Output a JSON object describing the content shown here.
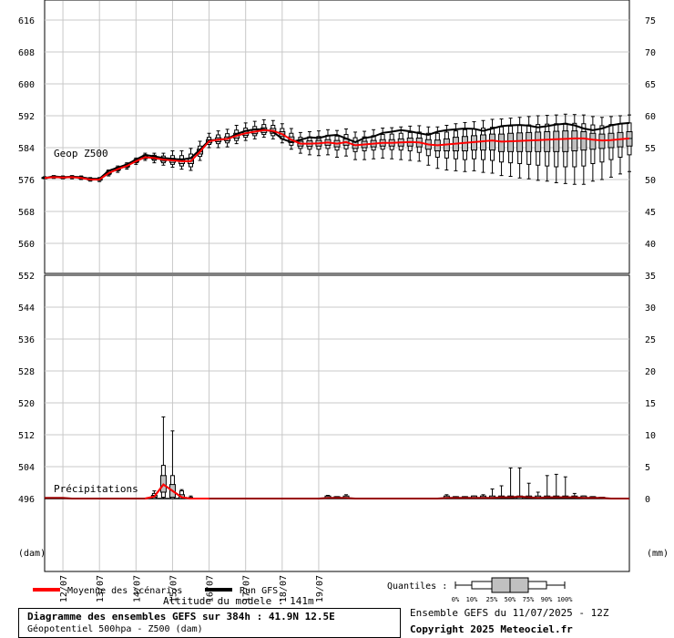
{
  "chart_data": {
    "type": "box-ensemble",
    "title": "Diagramme des ensembles GEFS sur 384h : 41.9N 12.5E",
    "subtitle": "Géopotentiel 500hpa - Z500 (dam)",
    "altitude_label": "Altitude du modele : 141m",
    "run_label": "Ensemble GEFS du 11/07/2025 - 12Z",
    "copyright": "Copyright 2025 Meteociel.fr",
    "left_axis_unit": "(dam)",
    "right_axis_unit": "(mm)",
    "upper_panel_label": "Geop Z500",
    "lower_panel_label": "Précipitations",
    "left_ticks": [
      616,
      608,
      600,
      592,
      584,
      576,
      568,
      560,
      552,
      544,
      536,
      528,
      520,
      512,
      504,
      496
    ],
    "right_ticks_upper": [
      75,
      70,
      65,
      60,
      55,
      50,
      45,
      40,
      35
    ],
    "right_ticks_lower": [
      30,
      25,
      20,
      15,
      10,
      5,
      0
    ],
    "date_ticks": [
      "12/07",
      "13/07",
      "14/07",
      "15/07",
      "16/07",
      "17/07",
      "18/07",
      "19/07"
    ],
    "legend": {
      "mean_label": "Moyenne des scénarios",
      "run_label": "Run GFS",
      "mean_color": "#ff0000",
      "run_color": "#000000",
      "quantiles_label": "Quantiles :",
      "quantile_labels": [
        "0%",
        "10%",
        "25%",
        "50%",
        "75%",
        "90%",
        "100%"
      ]
    },
    "z500": {
      "x_hours": [
        0,
        6,
        12,
        18,
        24,
        30,
        36,
        42,
        48,
        54,
        60,
        66,
        72,
        78,
        84,
        90,
        96,
        102,
        108,
        114,
        120,
        126,
        132,
        138,
        144,
        150,
        156,
        162,
        168,
        174,
        180,
        186,
        192,
        198,
        204,
        210,
        216,
        222,
        228,
        234,
        240,
        246,
        252,
        258,
        264,
        270,
        276,
        282,
        288,
        294,
        300,
        306,
        312,
        318,
        324,
        330,
        336,
        342,
        348,
        354,
        360,
        366,
        372,
        378,
        384
      ],
      "mean": [
        576.4,
        576.6,
        576.5,
        576.6,
        576.4,
        576.0,
        576.0,
        577.6,
        578.6,
        579.4,
        580.6,
        581.6,
        581.4,
        581.0,
        580.8,
        580.6,
        580.6,
        583.0,
        585.6,
        586.0,
        586.2,
        587.0,
        587.6,
        588.0,
        588.4,
        588.2,
        587.4,
        586.0,
        585.0,
        585.0,
        585.1,
        585.3,
        585.0,
        585.4,
        584.6,
        584.8,
        585.0,
        585.2,
        585.2,
        585.3,
        585.4,
        585.3,
        584.8,
        584.6,
        584.8,
        585.0,
        585.2,
        585.4,
        585.6,
        585.8,
        585.5,
        585.6,
        585.7,
        585.8,
        585.9,
        586.0,
        586.1,
        586.2,
        586.3,
        586.3,
        586.0,
        585.8,
        585.9,
        586.1,
        586.3
      ],
      "run": [
        576.4,
        576.8,
        576.6,
        576.7,
        576.6,
        576.2,
        576.2,
        578.2,
        579.0,
        579.8,
        581.0,
        582.2,
        581.8,
        581.4,
        581.2,
        581.0,
        581.4,
        583.5,
        585.8,
        586.0,
        586.2,
        587.4,
        588.2,
        588.6,
        588.6,
        588.0,
        586.2,
        585.4,
        586.0,
        586.6,
        586.4,
        587.0,
        587.2,
        586.3,
        585.4,
        586.4,
        586.8,
        587.7,
        588.0,
        588.4,
        588.1,
        587.6,
        587.2,
        588.0,
        588.4,
        588.6,
        588.8,
        588.7,
        588.2,
        588.8,
        589.4,
        589.6,
        589.7,
        589.5,
        589.1,
        589.4,
        589.8,
        590.0,
        589.6,
        588.8,
        588.4,
        588.8,
        589.6,
        590.0,
        590.2
      ],
      "q0": [
        576.2,
        576.3,
        576.2,
        576.2,
        576.0,
        575.6,
        575.5,
        576.9,
        577.8,
        578.6,
        579.8,
        580.8,
        580.2,
        579.6,
        579.1,
        578.6,
        578.3,
        580.8,
        584.0,
        584.0,
        584.2,
        585.0,
        585.8,
        586.2,
        586.6,
        586.2,
        585.2,
        583.6,
        582.6,
        582.2,
        582.0,
        582.2,
        581.6,
        581.9,
        581.0,
        581.0,
        581.2,
        581.4,
        581.2,
        581.0,
        580.8,
        580.6,
        579.6,
        578.8,
        578.4,
        578.2,
        578.0,
        578.2,
        577.8,
        577.6,
        577.0,
        576.8,
        576.4,
        576.2,
        575.8,
        575.6,
        575.2,
        575.0,
        574.8,
        574.8,
        575.6,
        576.0,
        576.6,
        577.4,
        578.0
      ],
      "q10": [
        576.3,
        576.4,
        576.3,
        576.4,
        576.2,
        575.8,
        575.8,
        577.2,
        578.2,
        579.0,
        580.2,
        581.2,
        580.8,
        580.2,
        579.8,
        579.4,
        579.2,
        581.8,
        584.8,
        585.0,
        585.2,
        585.8,
        586.6,
        587.0,
        587.3,
        587.0,
        586.2,
        584.6,
        583.8,
        583.6,
        583.6,
        583.8,
        583.4,
        583.7,
        583.0,
        583.2,
        583.4,
        583.6,
        583.5,
        583.4,
        583.2,
        582.8,
        582.0,
        581.6,
        581.4,
        581.2,
        581.0,
        581.2,
        581.0,
        580.8,
        580.4,
        580.2,
        580.0,
        579.8,
        579.6,
        579.4,
        579.2,
        579.2,
        579.2,
        579.4,
        580.0,
        580.4,
        581.0,
        581.6,
        582.2
      ],
      "q25": [
        576.3,
        576.5,
        576.4,
        576.5,
        576.3,
        575.9,
        575.9,
        577.4,
        578.4,
        579.2,
        580.4,
        581.4,
        581.1,
        580.6,
        580.3,
        580.0,
        580.0,
        582.4,
        585.2,
        585.5,
        585.7,
        586.4,
        587.1,
        587.5,
        587.8,
        587.6,
        586.8,
        585.3,
        584.4,
        584.3,
        584.4,
        584.6,
        584.2,
        584.6,
        583.8,
        584.0,
        584.2,
        584.4,
        584.4,
        584.4,
        584.4,
        584.2,
        583.6,
        583.2,
        583.2,
        583.2,
        583.2,
        583.4,
        583.4,
        583.4,
        583.0,
        583.0,
        583.0,
        583.0,
        583.0,
        583.0,
        583.0,
        583.0,
        583.2,
        583.4,
        583.6,
        583.8,
        584.0,
        584.2,
        584.4
      ],
      "q50": [
        576.4,
        576.6,
        576.5,
        576.6,
        576.4,
        576.0,
        576.0,
        577.6,
        578.6,
        579.4,
        580.6,
        581.6,
        581.4,
        581.0,
        580.8,
        580.6,
        580.6,
        583.0,
        585.6,
        586.0,
        586.2,
        587.0,
        587.6,
        588.0,
        588.4,
        588.2,
        587.4,
        586.0,
        585.0,
        585.0,
        585.1,
        585.3,
        585.0,
        585.4,
        584.6,
        584.8,
        585.0,
        585.2,
        585.2,
        585.3,
        585.4,
        585.3,
        584.8,
        584.6,
        584.8,
        585.0,
        585.2,
        585.4,
        585.6,
        585.8,
        585.5,
        585.6,
        585.7,
        585.8,
        585.9,
        586.0,
        586.1,
        586.2,
        586.3,
        586.3,
        586.0,
        585.8,
        585.9,
        586.1,
        586.3
      ],
      "q75": [
        576.5,
        576.7,
        576.6,
        576.7,
        576.5,
        576.1,
        576.1,
        577.8,
        578.8,
        579.6,
        580.8,
        581.8,
        581.7,
        581.4,
        581.3,
        581.2,
        581.3,
        583.6,
        586.0,
        586.5,
        586.7,
        587.6,
        588.1,
        588.5,
        589.0,
        588.8,
        588.0,
        586.7,
        585.6,
        585.7,
        585.8,
        586.0,
        585.8,
        586.2,
        585.4,
        585.6,
        585.8,
        586.0,
        586.0,
        586.2,
        586.4,
        586.4,
        586.0,
        585.9,
        586.2,
        586.6,
        586.8,
        587.0,
        587.2,
        587.4,
        587.4,
        587.6,
        587.7,
        587.8,
        587.9,
        588.0,
        588.1,
        588.2,
        588.2,
        588.0,
        587.6,
        587.4,
        587.6,
        587.8,
        588.0
      ],
      "q90": [
        576.6,
        576.9,
        576.8,
        576.9,
        576.7,
        576.3,
        576.3,
        578.2,
        579.1,
        579.9,
        581.1,
        582.2,
        582.1,
        581.9,
        582.0,
        582.0,
        582.4,
        584.4,
        586.6,
        587.2,
        587.5,
        588.4,
        588.9,
        589.3,
        589.8,
        589.6,
        588.8,
        587.6,
        586.6,
        586.7,
        586.8,
        587.1,
        586.9,
        587.3,
        586.5,
        586.7,
        587.0,
        587.3,
        587.4,
        587.6,
        587.8,
        587.9,
        587.6,
        587.6,
        587.9,
        588.2,
        588.5,
        588.7,
        588.9,
        589.1,
        589.2,
        589.4,
        589.6,
        589.7,
        589.8,
        589.9,
        590.0,
        590.1,
        590.1,
        590.0,
        589.7,
        589.5,
        589.8,
        590.0,
        590.2
      ],
      "q100": [
        576.7,
        577.0,
        576.9,
        577.0,
        576.9,
        576.5,
        576.5,
        578.4,
        579.4,
        580.2,
        581.4,
        582.6,
        582.6,
        582.6,
        583.2,
        583.2,
        583.8,
        585.6,
        587.6,
        588.2,
        588.6,
        589.6,
        590.2,
        590.6,
        591.0,
        590.8,
        590.0,
        588.8,
        587.8,
        588.0,
        588.2,
        588.5,
        588.3,
        588.7,
        587.9,
        588.1,
        588.5,
        588.9,
        589.0,
        589.2,
        589.4,
        589.5,
        589.2,
        589.2,
        589.6,
        590.0,
        590.3,
        590.5,
        590.8,
        591.1,
        591.2,
        591.4,
        591.6,
        591.8,
        592.0,
        592.1,
        592.2,
        592.4,
        592.3,
        592.2,
        591.8,
        591.6,
        591.8,
        592.0,
        592.2
      ]
    },
    "precip": {
      "x_hours": [
        156,
        162,
        168,
        174,
        180,
        186,
        192,
        198,
        204,
        210,
        216,
        222,
        228,
        234,
        240,
        246,
        252,
        258,
        264,
        270,
        276,
        282,
        288,
        294,
        300,
        306,
        312,
        318,
        324,
        330,
        336,
        342,
        348,
        354,
        360,
        366,
        372,
        378,
        384
      ],
      "dup_hours": [
        66,
        72,
        78,
        84,
        90,
        96,
        102,
        108
      ],
      "dup_mean": [
        0.0,
        0.3,
        2.2,
        1.2,
        0.2,
        0.0,
        0.0,
        0.0
      ],
      "dup_q10": [
        0.0,
        0.0,
        0.2,
        0.0,
        0.0,
        0.0,
        0.0,
        0.0
      ],
      "dup_q25": [
        0.0,
        0.2,
        1.0,
        0.2,
        0.0,
        0.0,
        0.0,
        0.0
      ],
      "dup_q75": [
        0.0,
        0.5,
        3.6,
        2.2,
        0.6,
        0.0,
        0.0,
        0.0
      ],
      "dup_q90": [
        0.0,
        0.8,
        5.2,
        3.6,
        1.2,
        0.2,
        0.0,
        0.0
      ],
      "dup_q100": [
        0.0,
        1.2,
        12.8,
        10.6,
        1.4,
        0.4,
        0.0,
        0.0
      ],
      "late_mean": [
        0.0,
        0.0,
        0.0,
        0.0,
        0.0,
        0.1,
        0.1,
        0.1,
        0.0,
        0.0,
        0.0,
        0.0,
        0.0,
        0.0,
        0.0,
        0.0,
        0.0,
        0.0,
        0.1,
        0.1,
        0.1,
        0.1,
        0.1,
        0.1,
        0.2,
        0.2,
        0.3,
        0.2,
        0.1,
        0.2,
        0.2,
        0.2,
        0.2,
        0.1,
        0.1,
        0.1,
        0.0,
        0.0,
        0.0
      ],
      "late_q100": [
        0.0,
        0.0,
        0.0,
        0.0,
        0.0,
        0.5,
        0.3,
        0.6,
        0.0,
        0.0,
        0.0,
        0.0,
        0.0,
        0.0,
        0.0,
        0.0,
        0.0,
        0.0,
        0.6,
        0.3,
        0.3,
        0.4,
        0.6,
        1.5,
        2.0,
        4.8,
        4.8,
        2.4,
        1.0,
        3.6,
        3.8,
        3.4,
        0.8,
        0.4,
        0.3,
        0.2,
        0.0,
        0.0,
        0.0
      ],
      "early_hours": [
        0,
        6,
        12,
        18,
        24,
        30,
        36,
        42,
        48,
        54,
        60
      ],
      "early_mean": [
        0.1,
        0.1,
        0.1,
        0.0,
        0.0,
        0.0,
        0.0,
        0.0,
        0.0,
        0.0,
        0.0
      ]
    }
  }
}
